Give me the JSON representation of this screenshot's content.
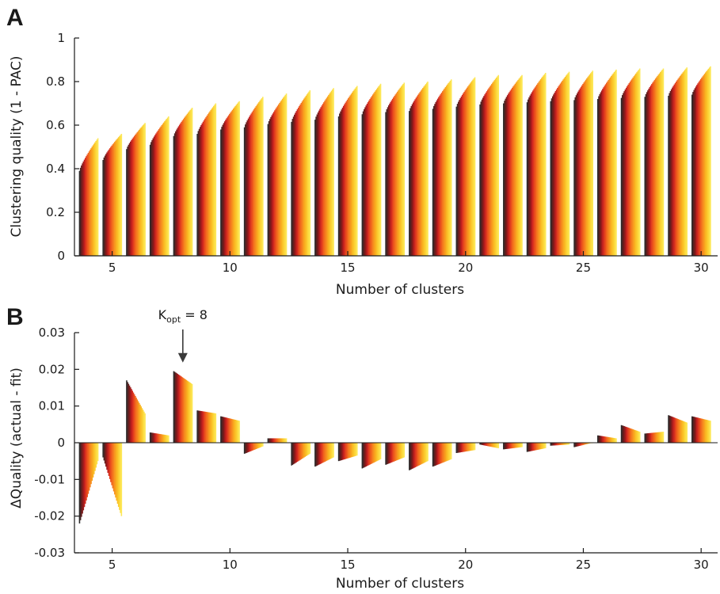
{
  "panels": [
    {
      "letter": "A",
      "chart_data": {
        "type": "bar",
        "title": "",
        "xlabel": "Number of clusters",
        "ylabel": "Clustering quality (1 - PAC)",
        "x": [
          4,
          5,
          6,
          7,
          8,
          9,
          10,
          11,
          12,
          13,
          14,
          15,
          16,
          17,
          18,
          19,
          20,
          21,
          22,
          23,
          24,
          25,
          26,
          27,
          28,
          29,
          30
        ],
        "base_values": [
          0.39,
          0.44,
          0.49,
          0.51,
          0.55,
          0.56,
          0.58,
          0.59,
          0.605,
          0.615,
          0.625,
          0.64,
          0.65,
          0.66,
          0.665,
          0.675,
          0.685,
          0.695,
          0.7,
          0.705,
          0.71,
          0.715,
          0.72,
          0.725,
          0.73,
          0.735,
          0.74
        ],
        "top_values": [
          0.54,
          0.56,
          0.61,
          0.64,
          0.68,
          0.7,
          0.71,
          0.73,
          0.745,
          0.76,
          0.77,
          0.78,
          0.79,
          0.795,
          0.8,
          0.81,
          0.82,
          0.83,
          0.83,
          0.84,
          0.845,
          0.85,
          0.855,
          0.86,
          0.86,
          0.865,
          0.87
        ],
        "bars_per_group": 20,
        "xticks": [
          5,
          10,
          15,
          20,
          25,
          30
        ],
        "xlim": [
          3.4,
          30.7
        ],
        "ylim": [
          0,
          1
        ],
        "yticks": [
          0,
          0.2,
          0.4,
          0.6,
          0.8,
          1
        ],
        "ytick_labels": [
          "0",
          "0.2",
          "0.4",
          "0.6",
          "0.8",
          "1"
        ],
        "palette": [
          "#2b2b2b",
          "#5a1f1f",
          "#8b1a1a",
          "#c41e1e",
          "#e03a1e",
          "#ef5a1c",
          "#f4781e",
          "#f7951f",
          "#f9b01f",
          "#fbc62a",
          "#fcd93c",
          "#fde858"
        ]
      }
    },
    {
      "letter": "B",
      "annotation": {
        "k_main": "K",
        "k_sub": "opt",
        "k_rest": " = 8",
        "at_x": 8
      },
      "chart_data": {
        "type": "bar",
        "title": "",
        "xlabel": "Number of clusters",
        "ylabel": "ΔQuality (actual - fit)",
        "x": [
          4,
          5,
          6,
          7,
          8,
          9,
          10,
          11,
          12,
          13,
          14,
          15,
          16,
          17,
          18,
          19,
          20,
          21,
          22,
          23,
          24,
          25,
          26,
          27,
          28,
          29,
          30
        ],
        "first_values": [
          -0.022,
          -0.004,
          0.017,
          0.0028,
          0.0195,
          0.0088,
          0.0072,
          -0.003,
          0.0012,
          -0.0062,
          -0.0065,
          -0.005,
          -0.007,
          -0.006,
          -0.0075,
          -0.0065,
          -0.0028,
          -0.0005,
          -0.0018,
          -0.0025,
          -0.0008,
          -0.0012,
          0.002,
          0.0048,
          0.0025,
          0.0075,
          0.0072
        ],
        "last_values": [
          -0.005,
          -0.02,
          0.008,
          0.002,
          0.016,
          0.008,
          0.006,
          -0.001,
          0.0012,
          -0.003,
          -0.004,
          -0.0035,
          -0.0045,
          -0.004,
          -0.005,
          -0.0045,
          -0.002,
          -0.0015,
          -0.0012,
          -0.0015,
          -0.0005,
          0.0,
          0.0012,
          0.003,
          0.003,
          0.0055,
          0.006
        ],
        "bars_per_group": 20,
        "xticks": [
          5,
          10,
          15,
          20,
          25,
          30
        ],
        "xlim": [
          3.4,
          30.7
        ],
        "ylim": [
          -0.03,
          0.03
        ],
        "yticks": [
          -0.03,
          -0.02,
          -0.01,
          0,
          0.01,
          0.02,
          0.03
        ],
        "ytick_labels": [
          "-0.03",
          "-0.02",
          "-0.01",
          "0",
          "0.01",
          "0.02",
          "0.03"
        ],
        "palette": [
          "#2b2b2b",
          "#5a1f1f",
          "#8b1a1a",
          "#c41e1e",
          "#e03a1e",
          "#ef5a1c",
          "#f4781e",
          "#f7951f",
          "#f9b01f",
          "#fbc62a",
          "#fcd93c",
          "#fde858"
        ]
      }
    }
  ]
}
